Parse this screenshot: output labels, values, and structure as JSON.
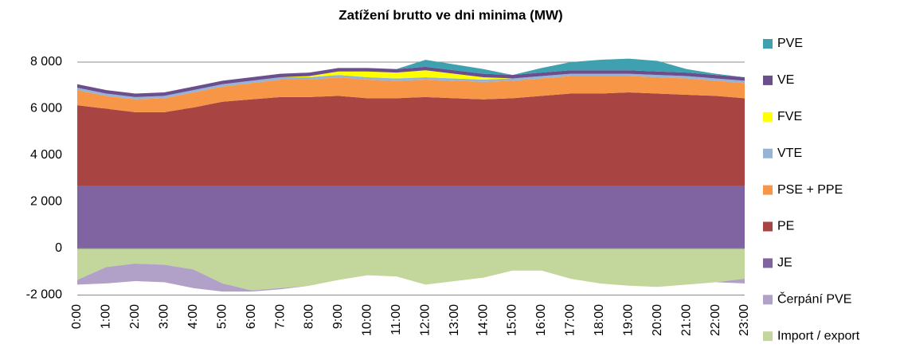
{
  "chart_data": {
    "type": "stacked_area",
    "title": "Zatížení brutto ve dni minima (MW)",
    "categories": [
      "0:00",
      "1:00",
      "2:00",
      "3:00",
      "4:00",
      "5:00",
      "6:00",
      "7:00",
      "8:00",
      "9:00",
      "10:00",
      "11:00",
      "12:00",
      "13:00",
      "14:00",
      "15:00",
      "16:00",
      "17:00",
      "18:00",
      "19:00",
      "20:00",
      "21:00",
      "22:00",
      "23:00"
    ],
    "series": [
      {
        "name": "PVE",
        "color": "#3fa0b0",
        "values": [
          0,
          0,
          0,
          0,
          0,
          0,
          0,
          0,
          0,
          0,
          0,
          0,
          300,
          250,
          200,
          0,
          200,
          350,
          450,
          500,
          450,
          150,
          50,
          0
        ]
      },
      {
        "name": "VE",
        "color": "#6b4e8e",
        "values": [
          150,
          150,
          150,
          150,
          150,
          150,
          150,
          150,
          150,
          150,
          150,
          150,
          150,
          150,
          150,
          150,
          150,
          150,
          150,
          150,
          150,
          150,
          150,
          150
        ]
      },
      {
        "name": "FVE",
        "color": "#ffff00",
        "values": [
          0,
          0,
          0,
          0,
          0,
          0,
          0,
          0,
          50,
          150,
          250,
          250,
          300,
          200,
          100,
          0,
          0,
          0,
          0,
          0,
          0,
          0,
          0,
          0
        ]
      },
      {
        "name": "VTE",
        "color": "#95b3d7",
        "values": [
          100,
          100,
          100,
          100,
          100,
          100,
          100,
          100,
          100,
          100,
          100,
          100,
          100,
          100,
          100,
          100,
          100,
          100,
          100,
          100,
          100,
          100,
          100,
          100
        ]
      },
      {
        "name": "PSE + PPE",
        "color": "#f79646",
        "values": [
          650,
          550,
          550,
          600,
          650,
          650,
          700,
          750,
          750,
          800,
          800,
          750,
          750,
          750,
          750,
          750,
          750,
          750,
          750,
          700,
          700,
          700,
          650,
          650
        ]
      },
      {
        "name": "PE",
        "color": "#a84543",
        "values": [
          3450,
          3300,
          3150,
          3150,
          3350,
          3600,
          3700,
          3800,
          3800,
          3850,
          3750,
          3750,
          3800,
          3750,
          3700,
          3750,
          3850,
          3950,
          3950,
          4000,
          3950,
          3900,
          3850,
          3750
        ]
      },
      {
        "name": "JE",
        "color": "#8064a2",
        "values": [
          2700,
          2700,
          2700,
          2700,
          2700,
          2700,
          2700,
          2700,
          2700,
          2700,
          2700,
          2700,
          2700,
          2700,
          2700,
          2700,
          2700,
          2700,
          2700,
          2700,
          2700,
          2700,
          2700,
          2700
        ]
      },
      {
        "name": "Čerpání PVE",
        "color": "#b1a0c7",
        "values": [
          -200,
          -700,
          -750,
          -750,
          -800,
          -350,
          -50,
          -50,
          0,
          0,
          0,
          0,
          0,
          0,
          0,
          0,
          0,
          0,
          0,
          0,
          0,
          0,
          0,
          -200
        ]
      },
      {
        "name": "Import / export",
        "color": "#c3d69b",
        "values": [
          -1350,
          -800,
          -650,
          -700,
          -900,
          -1500,
          -1800,
          -1700,
          -1600,
          -1350,
          -1150,
          -1200,
          -1550,
          -1400,
          -1250,
          -950,
          -950,
          -1300,
          -1500,
          -1600,
          -1650,
          -1550,
          -1450,
          -1300
        ]
      }
    ],
    "ylim": [
      -2000,
      8500
    ],
    "yticks": [
      {
        "value": -2000,
        "label": "-2 000"
      },
      0,
      {
        "value": 2000,
        "label": "2 000"
      },
      {
        "value": 4000,
        "label": "4 000"
      },
      {
        "value": 6000,
        "label": "6 000"
      },
      {
        "value": 8000,
        "label": "8 000"
      }
    ],
    "grid": true
  }
}
